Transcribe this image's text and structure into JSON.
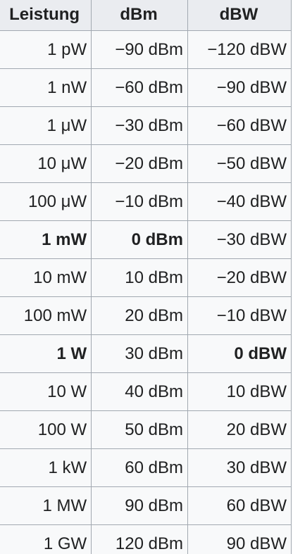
{
  "table": {
    "headers": [
      "Leistung",
      "dBm",
      "dBW"
    ],
    "rows": [
      {
        "cells": [
          "1 pW",
          "−90 dBm",
          "−120 dBW"
        ],
        "bold": [
          false,
          false,
          false
        ]
      },
      {
        "cells": [
          "1 nW",
          "−60 dBm",
          "−90 dBW"
        ],
        "bold": [
          false,
          false,
          false
        ]
      },
      {
        "cells": [
          "1 μW",
          "−30 dBm",
          "−60 dBW"
        ],
        "bold": [
          false,
          false,
          false
        ]
      },
      {
        "cells": [
          "10 μW",
          "−20 dBm",
          "−50 dBW"
        ],
        "bold": [
          false,
          false,
          false
        ]
      },
      {
        "cells": [
          "100 μW",
          "−10 dBm",
          "−40 dBW"
        ],
        "bold": [
          false,
          false,
          false
        ]
      },
      {
        "cells": [
          "1 mW",
          "0 dBm",
          "−30 dBW"
        ],
        "bold": [
          true,
          true,
          false
        ]
      },
      {
        "cells": [
          "10 mW",
          "10 dBm",
          "−20 dBW"
        ],
        "bold": [
          false,
          false,
          false
        ]
      },
      {
        "cells": [
          "100 mW",
          "20 dBm",
          "−10 dBW"
        ],
        "bold": [
          false,
          false,
          false
        ]
      },
      {
        "cells": [
          "1 W",
          "30 dBm",
          "0 dBW"
        ],
        "bold": [
          true,
          false,
          true
        ]
      },
      {
        "cells": [
          "10 W",
          "40 dBm",
          "10 dBW"
        ],
        "bold": [
          false,
          false,
          false
        ]
      },
      {
        "cells": [
          "100 W",
          "50 dBm",
          "20 dBW"
        ],
        "bold": [
          false,
          false,
          false
        ]
      },
      {
        "cells": [
          "1 kW",
          "60 dBm",
          "30 dBW"
        ],
        "bold": [
          false,
          false,
          false
        ]
      },
      {
        "cells": [
          "1 MW",
          "90 dBm",
          "60 dBW"
        ],
        "bold": [
          false,
          false,
          false
        ]
      },
      {
        "cells": [
          "1 GW",
          "120 dBm",
          "90 dBW"
        ],
        "bold": [
          false,
          false,
          false
        ]
      }
    ]
  },
  "colors": {
    "header_background": "#eaecf0",
    "cell_background": "#f8f9fa",
    "border": "#a2a9b1",
    "text": "#202122"
  }
}
